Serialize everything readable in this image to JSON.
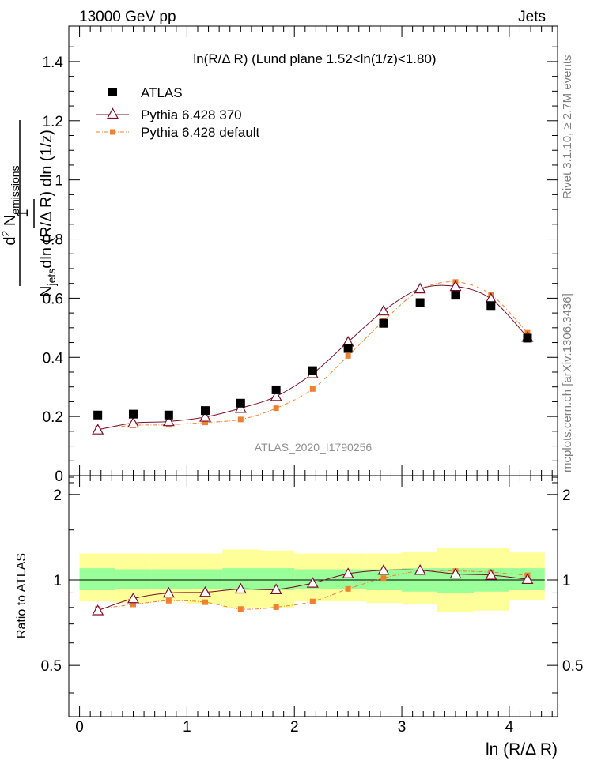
{
  "header": {
    "energy_label": "13000 GeV pp",
    "process_label": "Jets"
  },
  "side_texts": {
    "rivet": "Rivet 3.1.10, ≥ 2.7M events",
    "mcplots": "mcplots.cern.ch [arXiv:1306.3436]"
  },
  "chart_data": {
    "type": "scatter",
    "title": "ln(R/Δ R) (Lund plane 1.52<ln(1/z)<1.80)",
    "watermark": "ATLAS_2020_I1790256",
    "xlabel": "ln (R/Δ R)",
    "ylabel": {
      "one": "1",
      "den_base": "N",
      "den_sub": "jets",
      "den_rest": "dln (R/Δ R) dln (1/z)",
      "num_base": "d",
      "num_sup": "2",
      "num_mid": " N",
      "num_sub": "emissions"
    },
    "ratio_ylabel": "Ratio to ATLAS",
    "xlim": [
      -0.1,
      4.45
    ],
    "ylim": [
      0,
      1.52
    ],
    "ratio_ylim": [
      0.33,
      2.33
    ],
    "x_ticks": [
      "0",
      "1",
      "2",
      "3",
      "4"
    ],
    "y_ticks": [
      "0",
      "0.2",
      "0.4",
      "0.6",
      "0.8",
      "1",
      "1.2",
      "1.4"
    ],
    "ratio_y_ticks": [
      "0.5",
      "1",
      "2"
    ],
    "legend_position": "top-left",
    "x": [
      0.17,
      0.5,
      0.83,
      1.17,
      1.5,
      1.83,
      2.17,
      2.5,
      2.83,
      3.17,
      3.5,
      3.83,
      4.17
    ],
    "bin_edges": [
      0.0,
      0.33,
      0.67,
      1.0,
      1.33,
      1.67,
      2.0,
      2.33,
      2.67,
      3.0,
      3.33,
      3.67,
      4.0,
      4.33
    ],
    "series": [
      {
        "name": "ATLAS",
        "color": "#000000",
        "marker": "square",
        "values": [
          0.205,
          0.208,
          0.205,
          0.22,
          0.245,
          0.29,
          0.355,
          0.43,
          0.515,
          0.585,
          0.61,
          0.575,
          0.465
        ]
      },
      {
        "name": "Pythia 6.428 370",
        "color": "#7a0e2a",
        "marker": "triangle",
        "values": [
          0.155,
          0.178,
          0.183,
          0.198,
          0.228,
          0.268,
          0.345,
          0.452,
          0.557,
          0.632,
          0.64,
          0.598,
          0.468
        ]
      },
      {
        "name": "Pythia 6.428 default",
        "color": "#f08030",
        "marker": "small-square",
        "values": [
          0.158,
          0.17,
          0.172,
          0.18,
          0.19,
          0.228,
          0.293,
          0.405,
          0.523,
          0.628,
          0.655,
          0.612,
          0.483
        ]
      }
    ],
    "ratios": [
      [
        0.78,
        0.86,
        0.9,
        0.905,
        0.93,
        0.925,
        0.975,
        1.052,
        1.082,
        1.082,
        1.05,
        1.04,
        1.005
      ],
      [
        0.79,
        0.82,
        0.845,
        0.835,
        0.79,
        0.802,
        0.84,
        0.93,
        1.015,
        1.076,
        1.075,
        1.065,
        1.038
      ]
    ],
    "band_inner": [
      [
        0.92,
        1.1
      ],
      [
        0.93,
        1.09
      ],
      [
        0.93,
        1.09
      ],
      [
        0.93,
        1.09
      ],
      [
        0.92,
        1.1
      ],
      [
        0.92,
        1.1
      ],
      [
        0.93,
        1.09
      ],
      [
        0.93,
        1.09
      ],
      [
        0.92,
        1.09
      ],
      [
        0.91,
        1.1
      ],
      [
        0.9,
        1.1
      ],
      [
        0.91,
        1.1
      ],
      [
        0.92,
        1.1
      ]
    ],
    "band_outer": [
      [
        0.84,
        1.24
      ],
      [
        0.83,
        1.24
      ],
      [
        0.84,
        1.24
      ],
      [
        0.82,
        1.24
      ],
      [
        0.8,
        1.28
      ],
      [
        0.8,
        1.27
      ],
      [
        0.84,
        1.24
      ],
      [
        0.84,
        1.24
      ],
      [
        0.83,
        1.24
      ],
      [
        0.82,
        1.26
      ],
      [
        0.77,
        1.3
      ],
      [
        0.78,
        1.3
      ],
      [
        0.85,
        1.25
      ]
    ]
  }
}
